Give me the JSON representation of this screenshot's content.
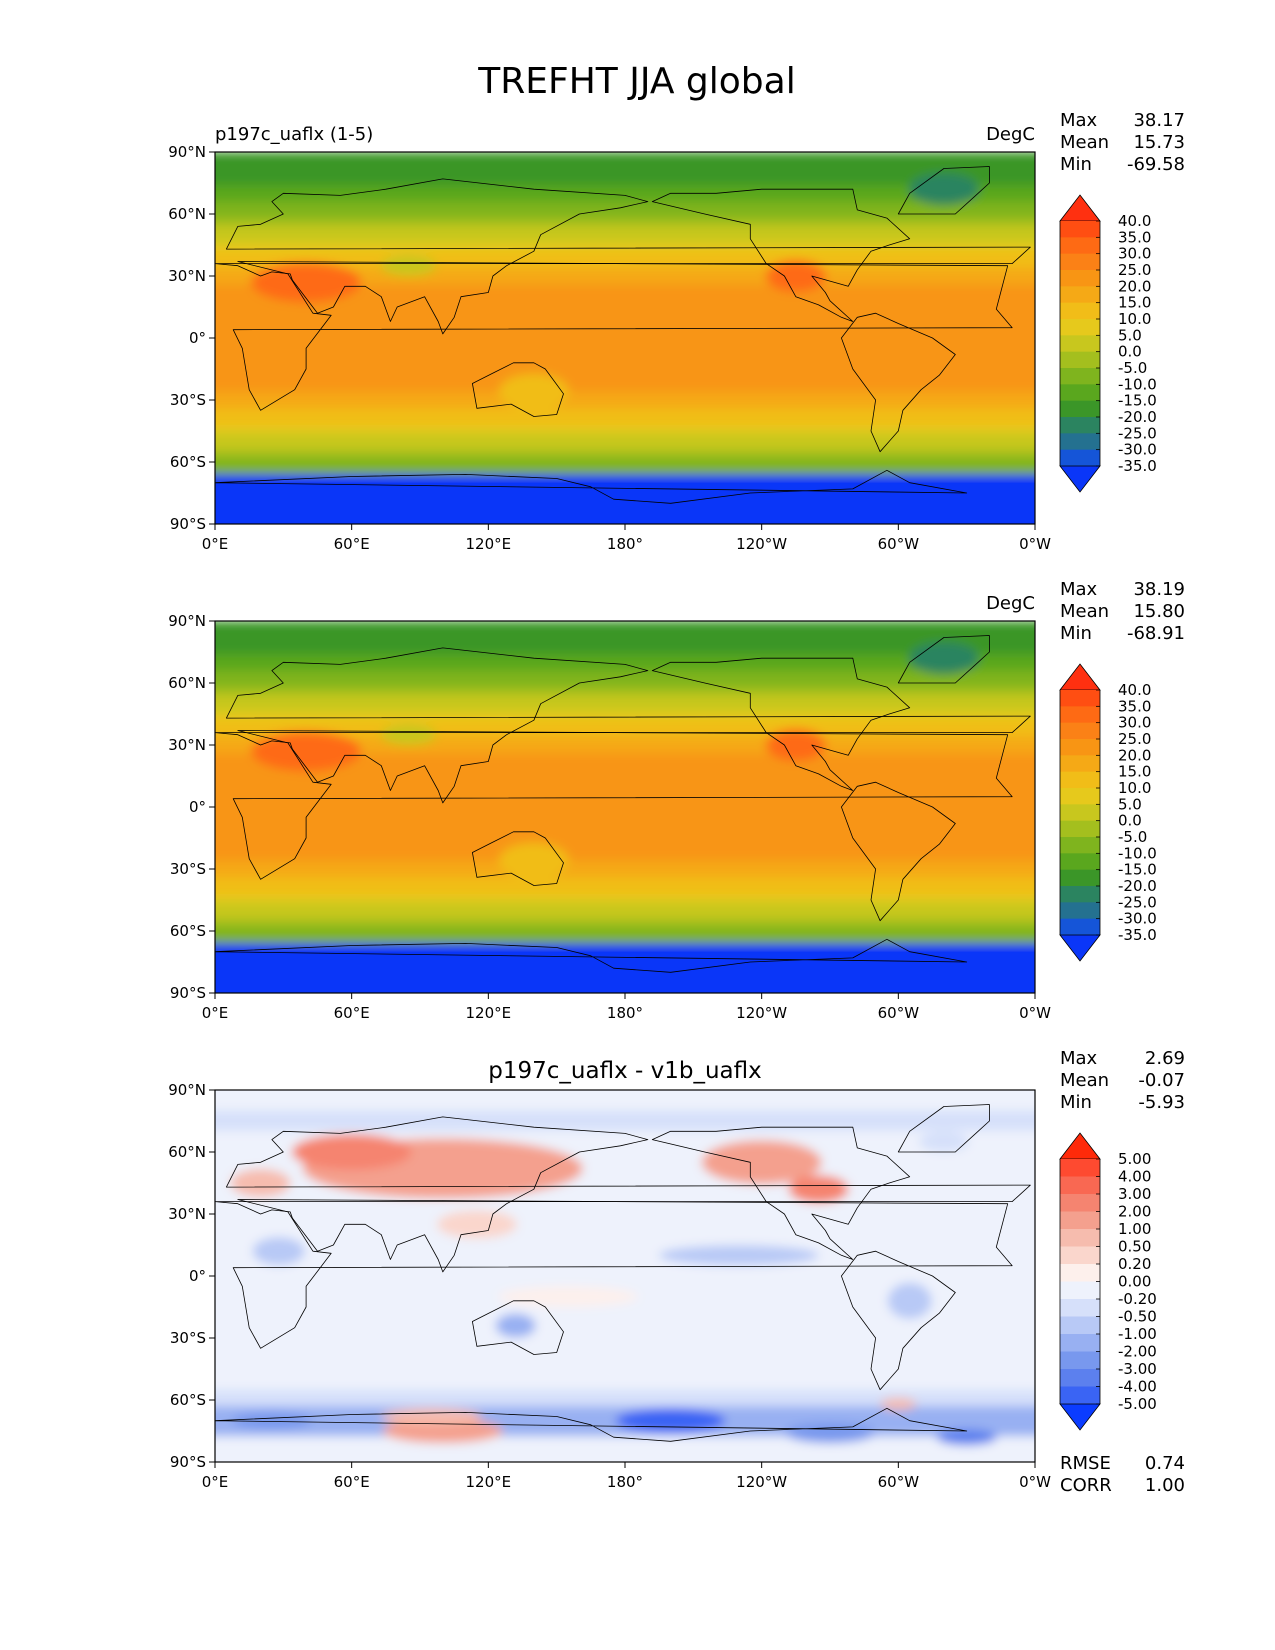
{
  "title": "TREFHT JJA global",
  "tick_labels": {
    "lon": [
      "0°E",
      "60°E",
      "120°E",
      "180°",
      "120°W",
      "60°W",
      "0°W"
    ],
    "lat": [
      "90°N",
      "60°N",
      "30°N",
      "0°",
      "30°S",
      "60°S",
      "90°S"
    ]
  },
  "stats_labels": {
    "max": "Max",
    "mean": "Mean",
    "min": "Min",
    "rmse": "RMSE",
    "corr": "CORR"
  },
  "chart_data": [
    {
      "type": "heatmap",
      "title_left": "p197c_uaflx (1-5)",
      "title_center": "",
      "units": "DegC",
      "stats": {
        "max": "38.17",
        "mean": "15.73",
        "min": "-69.58"
      },
      "colorbar_levels": [
        "40.0",
        "35.0",
        "30.0",
        "25.0",
        "20.0",
        "15.0",
        "10.0",
        "5.0",
        "0.0",
        "-5.0",
        "-10.0",
        "-15.0",
        "-20.0",
        "-25.0",
        "-30.0",
        "-35.0"
      ],
      "colorbar_colors": [
        "#ff3010",
        "#ff4e12",
        "#fe6a14",
        "#fb8116",
        "#f89514",
        "#f5a916",
        "#f1bd18",
        "#e6c91c",
        "#c8c71e",
        "#a4bf1e",
        "#7fb41e",
        "#5aa71e",
        "#3b9628",
        "#2b8460",
        "#247190",
        "#1555d8",
        "#0a36f8"
      ],
      "xlim": [
        0,
        360
      ],
      "ylim": [
        -90,
        90
      ],
      "grid": false,
      "colormap": "temperature"
    },
    {
      "type": "heatmap",
      "title_left": "",
      "title_center": "",
      "units": "DegC",
      "stats": {
        "max": "38.19",
        "mean": "15.80",
        "min": "-68.91"
      },
      "colorbar_levels": [
        "40.0",
        "35.0",
        "30.0",
        "25.0",
        "20.0",
        "15.0",
        "10.0",
        "5.0",
        "0.0",
        "-5.0",
        "-10.0",
        "-15.0",
        "-20.0",
        "-25.0",
        "-30.0",
        "-35.0"
      ],
      "colorbar_colors": [
        "#ff3010",
        "#ff4e12",
        "#fe6a14",
        "#fb8116",
        "#f89514",
        "#f5a916",
        "#f1bd18",
        "#e6c91c",
        "#c8c71e",
        "#a4bf1e",
        "#7fb41e",
        "#5aa71e",
        "#3b9628",
        "#2b8460",
        "#247190",
        "#1555d8",
        "#0a36f8"
      ],
      "xlim": [
        0,
        360
      ],
      "ylim": [
        -90,
        90
      ],
      "grid": false,
      "colormap": "temperature"
    },
    {
      "type": "heatmap",
      "title_left": "",
      "title_center": "p197c_uaflx - v1b_uaflx",
      "units": "",
      "stats": {
        "max": "2.69",
        "mean": "-0.07",
        "min": "-5.93"
      },
      "extra_stats": {
        "rmse": "0.74",
        "corr": "1.00"
      },
      "colorbar_levels": [
        "5.00",
        "4.00",
        "3.00",
        "2.00",
        "1.00",
        "0.50",
        "0.20",
        "0.00",
        "-0.20",
        "-0.50",
        "-1.00",
        "-2.00",
        "-3.00",
        "-4.00",
        "-5.00"
      ],
      "colorbar_colors": [
        "#ff2a0a",
        "#fe4a30",
        "#f96852",
        "#f58470",
        "#f4a08e",
        "#f6bcae",
        "#fad6cc",
        "#fdf0ec",
        "#eef2fc",
        "#d6e0fa",
        "#b8c9f6",
        "#98b0f2",
        "#7898ee",
        "#5c80ee",
        "#3a64f4",
        "#0b3cff"
      ],
      "xlim": [
        0,
        360
      ],
      "ylim": [
        -90,
        90
      ],
      "grid": false,
      "colormap": "difference"
    }
  ]
}
